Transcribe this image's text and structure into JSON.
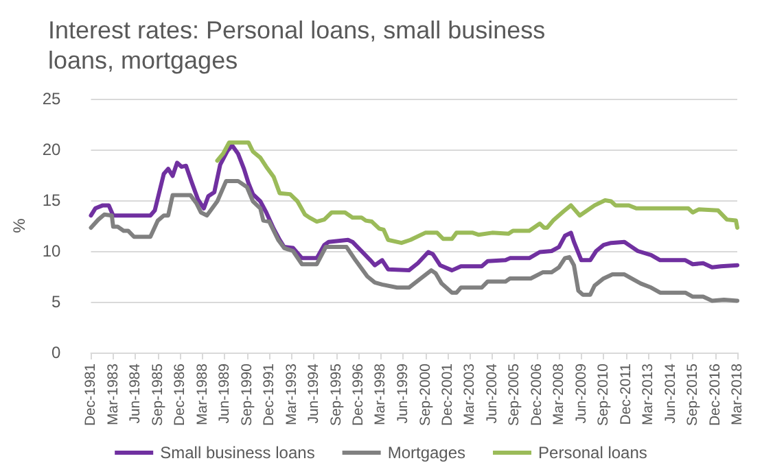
{
  "chart_data": {
    "type": "line",
    "title": "Interest rates: Personal loans, small business loans, mortgages",
    "ylabel": "%",
    "xlim": [
      "1981-12",
      "2018-03"
    ],
    "ylim": [
      0,
      25
    ],
    "yticks": [
      0,
      5,
      10,
      15,
      20,
      25
    ],
    "xticks": [
      {
        "value": "1981-12",
        "label": "Dec-1981"
      },
      {
        "value": "1983-03",
        "label": "Mar-1983"
      },
      {
        "value": "1984-06",
        "label": "Jun-1984"
      },
      {
        "value": "1985-09",
        "label": "Sep-1985"
      },
      {
        "value": "1986-12",
        "label": "Dec-1986"
      },
      {
        "value": "1988-03",
        "label": "Mar-1988"
      },
      {
        "value": "1989-06",
        "label": "Jun-1989"
      },
      {
        "value": "1990-09",
        "label": "Sep-1990"
      },
      {
        "value": "1991-12",
        "label": "Dec-1991"
      },
      {
        "value": "1993-03",
        "label": "Mar-1993"
      },
      {
        "value": "1994-06",
        "label": "Jun-1994"
      },
      {
        "value": "1995-09",
        "label": "Sep-1995"
      },
      {
        "value": "1996-12",
        "label": "Dec-1996"
      },
      {
        "value": "1998-03",
        "label": "Mar-1998"
      },
      {
        "value": "1999-06",
        "label": "Jun-1999"
      },
      {
        "value": "2000-09",
        "label": "Sep-2000"
      },
      {
        "value": "2001-12",
        "label": "Dec-2001"
      },
      {
        "value": "2003-03",
        "label": "Mar-2003"
      },
      {
        "value": "2004-06",
        "label": "Jun-2004"
      },
      {
        "value": "2005-09",
        "label": "Sep-2005"
      },
      {
        "value": "2006-12",
        "label": "Dec-2006"
      },
      {
        "value": "2008-03",
        "label": "Mar-2008"
      },
      {
        "value": "2009-06",
        "label": "Jun-2009"
      },
      {
        "value": "2010-09",
        "label": "Sep-2010"
      },
      {
        "value": "2011-12",
        "label": "Dec-2011"
      },
      {
        "value": "2013-03",
        "label": "Mar-2013"
      },
      {
        "value": "2014-06",
        "label": "Jun-2014"
      },
      {
        "value": "2015-09",
        "label": "Sep-2015"
      },
      {
        "value": "2016-12",
        "label": "Dec-2016"
      },
      {
        "value": "2018-03",
        "label": "Mar-2018"
      }
    ],
    "grid": "y",
    "legend": "bottom",
    "marker": "none",
    "line_style": "solid",
    "series": [
      {
        "name": "Small business loans",
        "color": "#7030a0",
        "x": [
          "1981-12",
          "1982-03",
          "1982-08",
          "1982-12",
          "1983-03",
          "1985-04",
          "1985-07",
          "1986-01",
          "1986-04",
          "1986-07",
          "1986-10",
          "1987-01",
          "1987-04",
          "1987-08",
          "1987-12",
          "1988-04",
          "1988-07",
          "1988-11",
          "1989-03",
          "1989-08",
          "1989-11",
          "1990-03",
          "1990-07",
          "1990-10",
          "1991-01",
          "1991-06",
          "1991-10",
          "1992-03",
          "1992-07",
          "1992-10",
          "1993-04",
          "1993-10",
          "1994-08",
          "1995-01",
          "1995-04",
          "1996-05",
          "1996-08",
          "1997-04",
          "1997-08",
          "1997-11",
          "1998-04",
          "1998-08",
          "1999-10",
          "2000-04",
          "2000-11",
          "2001-02",
          "2001-07",
          "2002-03",
          "2002-09",
          "2003-11",
          "2004-03",
          "2005-03",
          "2005-06",
          "2006-07",
          "2007-02",
          "2007-10",
          "2008-03",
          "2008-07",
          "2008-11",
          "2009-01",
          "2009-06",
          "2009-12",
          "2010-04",
          "2010-09",
          "2011-02",
          "2011-11",
          "2012-03",
          "2012-08",
          "2013-05",
          "2013-11",
          "2015-04",
          "2015-09",
          "2016-04",
          "2016-10",
          "2017-04",
          "2018-03"
        ],
        "values": [
          13.5,
          14.2,
          14.5,
          14.5,
          13.5,
          13.5,
          14.0,
          17.6,
          18.1,
          17.4,
          18.7,
          18.3,
          18.4,
          16.7,
          15.1,
          14.2,
          15.4,
          15.8,
          18.5,
          19.9,
          20.4,
          19.6,
          18.1,
          16.7,
          15.6,
          14.9,
          13.8,
          12.2,
          11.1,
          10.4,
          10.3,
          9.3,
          9.3,
          10.6,
          10.9,
          11.1,
          10.9,
          9.7,
          9.1,
          8.6,
          9.1,
          8.2,
          8.1,
          8.8,
          9.9,
          9.7,
          8.6,
          8.1,
          8.5,
          8.5,
          9.0,
          9.1,
          9.3,
          9.3,
          9.9,
          10.0,
          10.4,
          11.5,
          11.8,
          10.9,
          9.1,
          9.1,
          10.0,
          10.6,
          10.8,
          10.9,
          10.5,
          10.0,
          9.6,
          9.1,
          9.1,
          8.7,
          8.8,
          8.4,
          8.5,
          8.6
        ]
      },
      {
        "name": "Mortgages",
        "color": "#808080",
        "x": [
          "1981-12",
          "1982-05",
          "1982-09",
          "1983-02",
          "1983-03",
          "1983-06",
          "1983-10",
          "1984-01",
          "1984-05",
          "1985-04",
          "1985-09",
          "1986-01",
          "1986-04",
          "1986-07",
          "1987-07",
          "1987-11",
          "1988-02",
          "1988-06",
          "1989-01",
          "1989-07",
          "1990-03",
          "1990-09",
          "1991-01",
          "1991-06",
          "1991-08",
          "1991-12",
          "1992-06",
          "1992-10",
          "1993-04",
          "1993-10",
          "1994-08",
          "1995-02",
          "1996-04",
          "1996-10",
          "1997-06",
          "1997-11",
          "1998-04",
          "1999-02",
          "1999-10",
          "2000-06",
          "2001-01",
          "2001-04",
          "2001-08",
          "2002-03",
          "2002-06",
          "2002-09",
          "2003-11",
          "2004-03",
          "2005-03",
          "2005-06",
          "2006-08",
          "2007-04",
          "2007-10",
          "2008-03",
          "2008-07",
          "2008-10",
          "2009-01",
          "2009-04",
          "2009-07",
          "2009-12",
          "2010-03",
          "2010-09",
          "2011-03",
          "2011-11",
          "2012-05",
          "2012-10",
          "2013-05",
          "2013-11",
          "2015-04",
          "2015-09",
          "2016-04",
          "2016-10",
          "2017-06",
          "2018-03"
        ],
        "values": [
          12.3,
          13.1,
          13.6,
          13.5,
          12.4,
          12.4,
          12.0,
          12.0,
          11.4,
          11.4,
          13.0,
          13.5,
          13.5,
          15.5,
          15.5,
          14.7,
          13.8,
          13.5,
          14.9,
          16.9,
          16.9,
          16.3,
          14.9,
          14.2,
          13.0,
          12.9,
          11.1,
          10.3,
          10.0,
          8.7,
          8.7,
          10.4,
          10.4,
          9.1,
          7.5,
          6.9,
          6.7,
          6.4,
          6.4,
          7.3,
          8.1,
          7.8,
          6.8,
          5.9,
          5.9,
          6.4,
          6.4,
          7.0,
          7.0,
          7.3,
          7.3,
          7.9,
          7.9,
          8.4,
          9.3,
          9.4,
          8.6,
          6.1,
          5.7,
          5.7,
          6.6,
          7.3,
          7.7,
          7.7,
          7.2,
          6.8,
          6.4,
          5.9,
          5.9,
          5.5,
          5.5,
          5.1,
          5.2,
          5.1
        ]
      },
      {
        "name": "Personal loans",
        "color": "#9bbb59",
        "x": [
          "1989-01",
          "1989-05",
          "1989-09",
          "1990-10",
          "1991-01",
          "1991-06",
          "1991-10",
          "1992-03",
          "1992-07",
          "1993-02",
          "1993-07",
          "1993-12",
          "1994-03",
          "1994-08",
          "1995-01",
          "1995-06",
          "1996-03",
          "1996-08",
          "1997-02",
          "1997-05",
          "1997-09",
          "1998-02",
          "1998-05",
          "1998-08",
          "1999-05",
          "1999-11",
          "2000-09",
          "2001-05",
          "2001-09",
          "2002-03",
          "2002-06",
          "2003-05",
          "2003-09",
          "2004-06",
          "2005-05",
          "2005-08",
          "2006-07",
          "2007-02",
          "2007-05",
          "2007-07",
          "2007-11",
          "2008-06",
          "2008-11",
          "2009-05",
          "2009-10",
          "2010-03",
          "2010-10",
          "2011-02",
          "2011-05",
          "2012-02",
          "2012-07",
          "2015-06",
          "2015-09",
          "2016-01",
          "2017-02",
          "2017-08",
          "2018-02",
          "2018-03"
        ],
        "values": [
          18.9,
          19.6,
          20.7,
          20.7,
          19.8,
          19.2,
          18.3,
          17.3,
          15.7,
          15.6,
          14.9,
          13.6,
          13.3,
          12.9,
          13.1,
          13.8,
          13.8,
          13.3,
          13.3,
          13.0,
          12.9,
          12.2,
          12.1,
          11.1,
          10.8,
          11.1,
          11.8,
          11.8,
          11.2,
          11.2,
          11.8,
          11.8,
          11.6,
          11.8,
          11.7,
          12.0,
          12.0,
          12.7,
          12.3,
          12.3,
          13.0,
          13.9,
          14.5,
          13.5,
          14.0,
          14.5,
          15.0,
          14.9,
          14.5,
          14.5,
          14.2,
          14.2,
          13.8,
          14.1,
          14.0,
          13.1,
          13.0,
          12.3
        ]
      }
    ]
  }
}
